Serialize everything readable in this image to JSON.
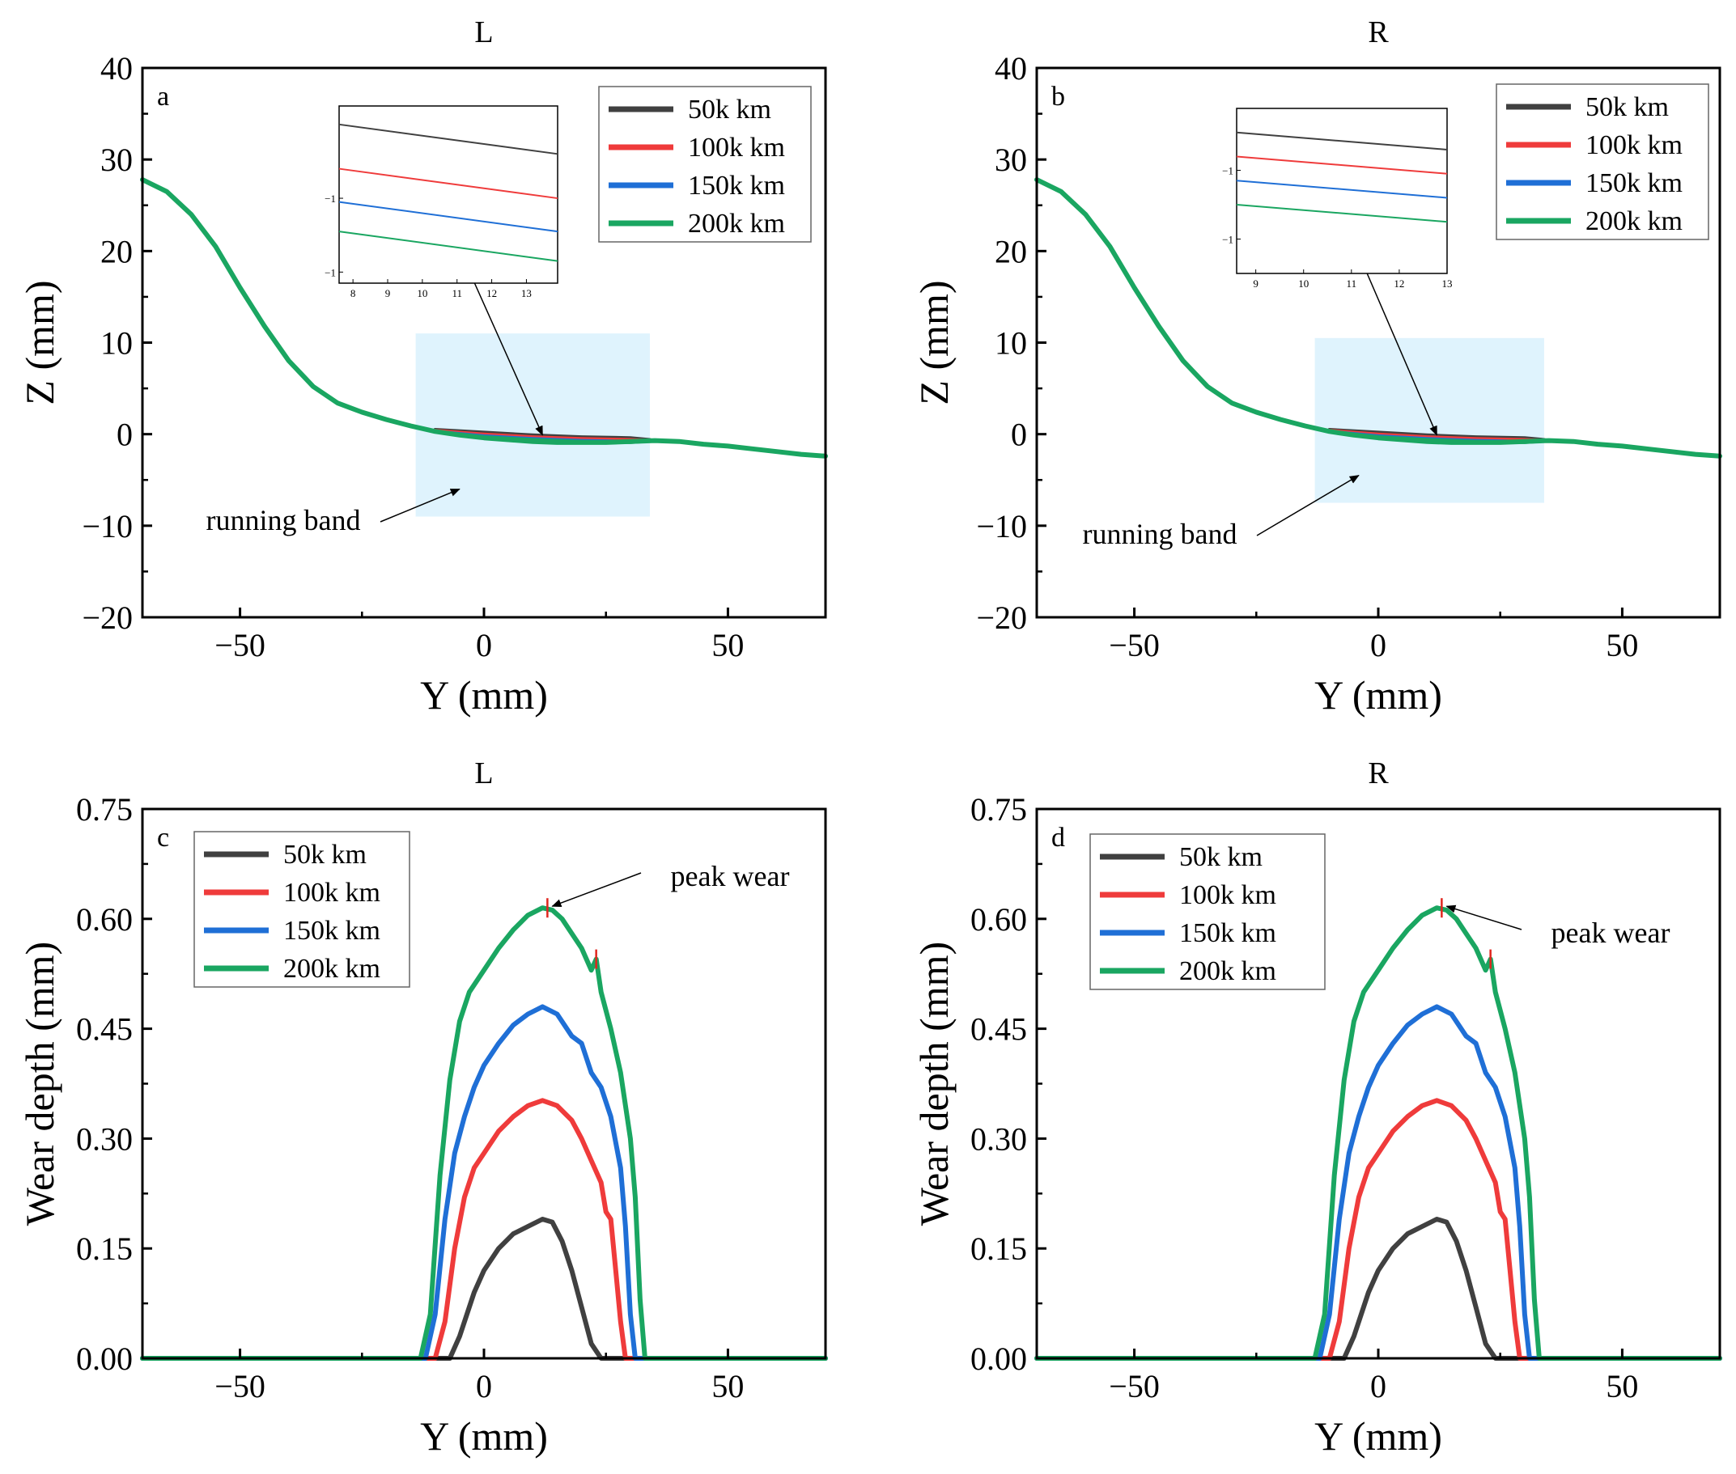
{
  "colors": {
    "s50": "#404040",
    "s100": "#ef3b3b",
    "s150": "#1f6fd6",
    "s200": "#1aa661",
    "band": "#dff3fd",
    "marker": "#e0261e"
  },
  "chart_data": [
    {
      "id": "a",
      "type": "line",
      "title": "L",
      "panel_letter": "a",
      "xlabel": "Y (mm)",
      "ylabel": "Z (mm)",
      "xlim": [
        -70,
        70
      ],
      "ylim": [
        -20,
        40
      ],
      "xticks": [
        -50,
        0,
        50
      ],
      "xtick_labels": [
        "−50",
        "0",
        "50"
      ],
      "yticks": [
        -20,
        -10,
        0,
        10,
        20,
        30,
        40
      ],
      "ytick_labels": [
        "−20",
        "−10",
        "0",
        "10",
        "20",
        "30",
        "40"
      ],
      "legend": [
        "50k km",
        "100k km",
        "150k km",
        "200k km"
      ],
      "legend_position": "top-right",
      "running_band": {
        "label": "running band",
        "x": [
          -14,
          34
        ],
        "y": [
          -9,
          11
        ]
      },
      "profile": {
        "x": [
          -70,
          -65,
          -60,
          -55,
          -50,
          -45,
          -40,
          -35,
          -30,
          -25,
          -20,
          -15,
          -10,
          -5,
          0,
          5,
          10,
          15,
          20,
          25,
          30,
          35,
          40,
          45,
          50,
          55,
          60,
          65,
          70
        ],
        "y": [
          27.8,
          26.5,
          24.0,
          20.5,
          16.0,
          11.8,
          8.0,
          5.2,
          3.4,
          2.4,
          1.6,
          0.9,
          0.3,
          -0.1,
          -0.4,
          -0.6,
          -0.8,
          -0.9,
          -0.9,
          -0.9,
          -0.8,
          -0.7,
          -0.8,
          -1.1,
          -1.3,
          -1.6,
          -1.9,
          -2.2,
          -2.4
        ]
      },
      "wear_band_series": [
        {
          "name": "50k km",
          "x": [
            -10,
            0,
            10,
            20,
            30,
            34
          ],
          "y": [
            0.5,
            0.2,
            -0.1,
            -0.3,
            -0.4,
            -0.6
          ]
        },
        {
          "name": "100k km",
          "x": [
            -10,
            0,
            10,
            20,
            30,
            34
          ],
          "y": [
            0.4,
            0.0,
            -0.3,
            -0.5,
            -0.6,
            -0.7
          ]
        },
        {
          "name": "150k km",
          "x": [
            -10,
            0,
            10,
            20,
            30,
            34
          ],
          "y": [
            0.3,
            -0.2,
            -0.5,
            -0.7,
            -0.8,
            -0.75
          ]
        },
        {
          "name": "200k km",
          "x": [
            -10,
            0,
            10,
            20,
            30,
            34
          ],
          "y": [
            0.3,
            -0.3,
            -0.6,
            -0.8,
            -0.9,
            -0.75
          ]
        }
      ],
      "inset": {
        "xlim": [
          7.6,
          13.9
        ],
        "ylim": [
          -1.2,
          -0.72
        ],
        "xticks": [
          8,
          9,
          10,
          11,
          12,
          13
        ],
        "xtick_labels": [
          "8",
          "9",
          "10",
          "11",
          "12",
          "13"
        ],
        "yticks": [
          -0.97,
          -1.17
        ],
        "ytick_labels": [
          "−1",
          "−1"
        ],
        "series": [
          {
            "name": "50k km",
            "y_start": -0.77,
            "y_end": -0.85
          },
          {
            "name": "100k km",
            "y_start": -0.89,
            "y_end": -0.97
          },
          {
            "name": "150k km",
            "y_start": -0.98,
            "y_end": -1.06
          },
          {
            "name": "200k km",
            "y_start": -1.06,
            "y_end": -1.14
          }
        ]
      }
    },
    {
      "id": "b",
      "type": "line",
      "title": "R",
      "panel_letter": "b",
      "xlabel": "Y (mm)",
      "ylabel": "Z (mm)",
      "xlim": [
        -70,
        70
      ],
      "ylim": [
        -20,
        40
      ],
      "xticks": [
        -50,
        0,
        50
      ],
      "xtick_labels": [
        "−50",
        "0",
        "50"
      ],
      "yticks": [
        -20,
        -10,
        0,
        10,
        20,
        30,
        40
      ],
      "ytick_labels": [
        "−20",
        "−10",
        "0",
        "10",
        "20",
        "30",
        "40"
      ],
      "legend": [
        "50k km",
        "100k km",
        "150k km",
        "200k km"
      ],
      "legend_position": "top-right",
      "running_band": {
        "label": "running band",
        "x": [
          -13,
          34
        ],
        "y": [
          -7.5,
          10.5
        ]
      },
      "profile": {
        "x": [
          -70,
          -65,
          -60,
          -55,
          -50,
          -45,
          -40,
          -35,
          -30,
          -25,
          -20,
          -15,
          -10,
          -5,
          0,
          5,
          10,
          15,
          20,
          25,
          30,
          35,
          40,
          45,
          50,
          55,
          60,
          65,
          70
        ],
        "y": [
          27.8,
          26.5,
          24.0,
          20.5,
          16.0,
          11.8,
          8.0,
          5.2,
          3.4,
          2.4,
          1.6,
          0.9,
          0.3,
          -0.1,
          -0.4,
          -0.6,
          -0.8,
          -0.9,
          -0.9,
          -0.9,
          -0.8,
          -0.7,
          -0.8,
          -1.1,
          -1.3,
          -1.6,
          -1.9,
          -2.2,
          -2.4
        ]
      },
      "wear_band_series": [
        {
          "name": "50k km",
          "x": [
            -10,
            0,
            10,
            20,
            30,
            34
          ],
          "y": [
            0.5,
            0.2,
            -0.1,
            -0.3,
            -0.4,
            -0.6
          ]
        },
        {
          "name": "100k km",
          "x": [
            -10,
            0,
            10,
            20,
            30,
            34
          ],
          "y": [
            0.4,
            0.0,
            -0.3,
            -0.5,
            -0.6,
            -0.7
          ]
        },
        {
          "name": "150k km",
          "x": [
            -10,
            0,
            10,
            20,
            30,
            34
          ],
          "y": [
            0.3,
            -0.2,
            -0.5,
            -0.7,
            -0.8,
            -0.75
          ]
        },
        {
          "name": "200k km",
          "x": [
            -10,
            0,
            10,
            20,
            30,
            34
          ],
          "y": [
            0.3,
            -0.3,
            -0.6,
            -0.8,
            -0.9,
            -0.75
          ]
        }
      ],
      "inset": {
        "xlim": [
          8.6,
          13.0
        ],
        "ylim": [
          -1.2,
          -0.72
        ],
        "xticks": [
          9,
          10,
          11,
          12,
          13
        ],
        "xtick_labels": [
          "9",
          "10",
          "11",
          "12",
          "13"
        ],
        "yticks": [
          -0.9,
          -1.1
        ],
        "ytick_labels": [
          "−1",
          "−1"
        ],
        "series": [
          {
            "name": "50k km",
            "y_start": -0.79,
            "y_end": -0.84
          },
          {
            "name": "100k km",
            "y_start": -0.86,
            "y_end": -0.91
          },
          {
            "name": "150k km",
            "y_start": -0.93,
            "y_end": -0.98
          },
          {
            "name": "200k km",
            "y_start": -1.0,
            "y_end": -1.05
          }
        ]
      }
    },
    {
      "id": "c",
      "type": "line",
      "title": "L",
      "panel_letter": "c",
      "xlabel": "Y (mm)",
      "ylabel": "Wear depth (mm)",
      "xlim": [
        -70,
        70
      ],
      "ylim": [
        0,
        0.75
      ],
      "xticks": [
        -50,
        0,
        50
      ],
      "xtick_labels": [
        "−50",
        "0",
        "50"
      ],
      "yticks": [
        0,
        0.15,
        0.3,
        0.45,
        0.6,
        0.75
      ],
      "ytick_labels": [
        "0.00",
        "0.15",
        "0.30",
        "0.45",
        "0.60",
        "0.75"
      ],
      "legend": [
        "50k km",
        "100k km",
        "150k km",
        "200k km"
      ],
      "legend_position": "top-left",
      "annotation": {
        "label": "peak wear",
        "x": 13,
        "y": 0.615
      },
      "series": [
        {
          "name": "50k km",
          "x": [
            -70,
            -7,
            -5,
            -2,
            0,
            3,
            6,
            9,
            12,
            14,
            16,
            18,
            20,
            22,
            24,
            70
          ],
          "y": [
            0,
            0,
            0.03,
            0.09,
            0.12,
            0.15,
            0.17,
            0.18,
            0.19,
            0.186,
            0.16,
            0.12,
            0.07,
            0.02,
            0,
            0
          ]
        },
        {
          "name": "100k km",
          "x": [
            -70,
            -10,
            -8,
            -6,
            -4,
            -2,
            0,
            3,
            6,
            9,
            12,
            15,
            18,
            20,
            22,
            24,
            25,
            26,
            27,
            28,
            29,
            70
          ],
          "y": [
            0,
            0,
            0.05,
            0.15,
            0.22,
            0.26,
            0.28,
            0.31,
            0.33,
            0.345,
            0.352,
            0.345,
            0.325,
            0.3,
            0.27,
            0.24,
            0.2,
            0.19,
            0.12,
            0.05,
            0,
            0
          ]
        },
        {
          "name": "150k km",
          "x": [
            -70,
            -12,
            -10,
            -8,
            -6,
            -4,
            -2,
            0,
            3,
            6,
            9,
            12,
            15,
            18,
            20,
            22,
            24,
            26,
            28,
            29,
            30,
            31,
            70
          ],
          "y": [
            0,
            0,
            0.06,
            0.19,
            0.28,
            0.33,
            0.37,
            0.4,
            0.43,
            0.455,
            0.47,
            0.48,
            0.47,
            0.44,
            0.43,
            0.39,
            0.37,
            0.33,
            0.26,
            0.18,
            0.06,
            0,
            0
          ]
        },
        {
          "name": "200k km",
          "x": [
            -70,
            -13,
            -11,
            -9,
            -7,
            -5,
            -3,
            0,
            3,
            6,
            9,
            12,
            14,
            16,
            18,
            20,
            22,
            23,
            24,
            26,
            28,
            30,
            31,
            32,
            33,
            70
          ],
          "y": [
            0,
            0,
            0.06,
            0.25,
            0.38,
            0.46,
            0.5,
            0.53,
            0.56,
            0.585,
            0.605,
            0.615,
            0.612,
            0.6,
            0.58,
            0.56,
            0.53,
            0.545,
            0.5,
            0.45,
            0.39,
            0.3,
            0.22,
            0.08,
            0,
            0
          ]
        }
      ],
      "peak_markers": [
        {
          "x": 13,
          "y": 0.615
        },
        {
          "x": 23,
          "y": 0.545
        }
      ]
    },
    {
      "id": "d",
      "type": "line",
      "title": "R",
      "panel_letter": "d",
      "xlabel": "Y (mm)",
      "ylabel": "Wear depth (mm)",
      "xlim": [
        -70,
        70
      ],
      "ylim": [
        0,
        0.75
      ],
      "xticks": [
        -50,
        0,
        50
      ],
      "xtick_labels": [
        "−50",
        "0",
        "50"
      ],
      "yticks": [
        0,
        0.15,
        0.3,
        0.45,
        0.6,
        0.75
      ],
      "ytick_labels": [
        "0.00",
        "0.15",
        "0.30",
        "0.45",
        "0.60",
        "0.75"
      ],
      "legend": [
        "50k km",
        "100k km",
        "150k km",
        "200k km"
      ],
      "legend_position": "top-left",
      "annotation": {
        "label": "peak wear",
        "x": 13,
        "y": 0.615
      },
      "series": [
        {
          "name": "50k km",
          "x": [
            -70,
            -7,
            -5,
            -2,
            0,
            3,
            6,
            9,
            12,
            14,
            16,
            18,
            20,
            22,
            24,
            70
          ],
          "y": [
            0,
            0,
            0.03,
            0.09,
            0.12,
            0.15,
            0.17,
            0.18,
            0.19,
            0.186,
            0.16,
            0.12,
            0.07,
            0.02,
            0,
            0
          ]
        },
        {
          "name": "100k km",
          "x": [
            -70,
            -10,
            -8,
            -6,
            -4,
            -2,
            0,
            3,
            6,
            9,
            12,
            15,
            18,
            20,
            22,
            24,
            25,
            26,
            27,
            28,
            29,
            70
          ],
          "y": [
            0,
            0,
            0.05,
            0.15,
            0.22,
            0.26,
            0.28,
            0.31,
            0.33,
            0.345,
            0.352,
            0.345,
            0.325,
            0.3,
            0.27,
            0.24,
            0.2,
            0.19,
            0.12,
            0.05,
            0,
            0
          ]
        },
        {
          "name": "150k km",
          "x": [
            -70,
            -12,
            -10,
            -8,
            -6,
            -4,
            -2,
            0,
            3,
            6,
            9,
            12,
            15,
            18,
            20,
            22,
            24,
            26,
            28,
            29,
            30,
            31,
            70
          ],
          "y": [
            0,
            0,
            0.06,
            0.19,
            0.28,
            0.33,
            0.37,
            0.4,
            0.43,
            0.455,
            0.47,
            0.48,
            0.47,
            0.44,
            0.43,
            0.39,
            0.37,
            0.33,
            0.26,
            0.18,
            0.06,
            0,
            0
          ]
        },
        {
          "name": "200k km",
          "x": [
            -70,
            -13,
            -11,
            -9,
            -7,
            -5,
            -3,
            0,
            3,
            6,
            9,
            12,
            14,
            16,
            18,
            20,
            22,
            23,
            24,
            26,
            28,
            30,
            31,
            32,
            33,
            70
          ],
          "y": [
            0,
            0,
            0.06,
            0.25,
            0.38,
            0.46,
            0.5,
            0.53,
            0.56,
            0.585,
            0.605,
            0.615,
            0.612,
            0.6,
            0.58,
            0.56,
            0.53,
            0.545,
            0.5,
            0.45,
            0.39,
            0.3,
            0.22,
            0.08,
            0,
            0
          ]
        }
      ],
      "peak_markers": [
        {
          "x": 13,
          "y": 0.615
        },
        {
          "x": 23,
          "y": 0.545
        }
      ]
    }
  ]
}
